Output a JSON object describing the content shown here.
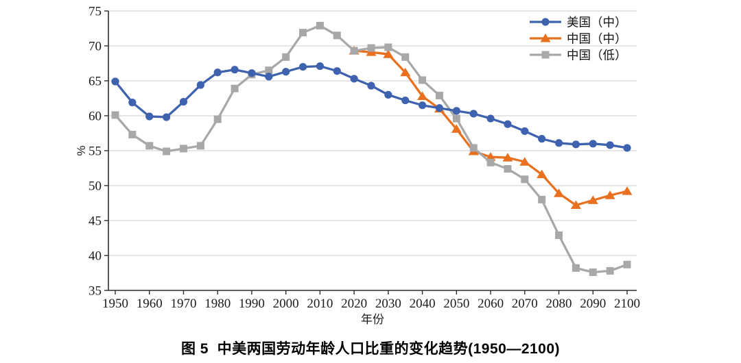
{
  "figure": {
    "caption": "图 5  中美两国劳动年龄人口比重的变化趋势(1950—2100)"
  },
  "chart_data": {
    "type": "line",
    "title": "",
    "xlabel": "年份",
    "ylabel": "%",
    "ylim": [
      35,
      75
    ],
    "yticks": [
      35,
      40,
      45,
      50,
      55,
      60,
      65,
      70,
      75
    ],
    "xticks": [
      1950,
      1960,
      1970,
      1980,
      1990,
      2000,
      2010,
      2020,
      2030,
      2040,
      2050,
      2060,
      2070,
      2080,
      2090,
      2100
    ],
    "grid": "horizontal",
    "legend_position": "top-right",
    "x": [
      1950,
      1955,
      1960,
      1965,
      1970,
      1975,
      1980,
      1985,
      1990,
      1995,
      2000,
      2005,
      2010,
      2015,
      2020,
      2025,
      2030,
      2035,
      2040,
      2045,
      2050,
      2055,
      2060,
      2065,
      2070,
      2075,
      2080,
      2085,
      2090,
      2095,
      2100
    ],
    "series": [
      {
        "key": "us-mid",
        "name": "美国（中）",
        "color": "#3E62AE",
        "marker": "circle",
        "values": [
          64.9,
          61.9,
          59.9,
          59.8,
          62.0,
          64.4,
          66.2,
          66.6,
          66.1,
          65.6,
          66.3,
          67.0,
          67.1,
          66.4,
          65.3,
          64.3,
          63.0,
          62.2,
          61.5,
          61.1,
          60.7,
          60.3,
          59.6,
          58.8,
          57.8,
          56.7,
          56.1,
          55.9,
          56.0,
          55.8,
          55.4
        ]
      },
      {
        "key": "cn-mid",
        "name": "中国（中）",
        "color": "#E8701F",
        "marker": "triangle",
        "values": [
          null,
          null,
          null,
          null,
          null,
          null,
          null,
          null,
          null,
          null,
          null,
          null,
          null,
          null,
          69.3,
          69.1,
          68.8,
          66.2,
          62.8,
          61.0,
          58.1,
          54.9,
          54.1,
          54.0,
          53.4,
          51.6,
          48.9,
          47.2,
          47.9,
          48.6,
          49.2
        ]
      },
      {
        "key": "cn-low",
        "name": "中国（低）",
        "color": "#A8A8A8",
        "marker": "square",
        "values": [
          60.1,
          57.3,
          55.7,
          54.9,
          55.3,
          55.7,
          59.5,
          63.9,
          65.9,
          66.5,
          68.4,
          71.9,
          72.9,
          71.5,
          69.3,
          69.7,
          69.8,
          68.4,
          65.1,
          62.9,
          59.6,
          55.4,
          53.3,
          52.4,
          50.9,
          48.0,
          42.9,
          38.2,
          37.6,
          37.8,
          38.7
        ]
      }
    ],
    "style": {
      "gridline_color": "#D6D6D6",
      "axis_color": "#2B2B2B",
      "text_color": "#1c1c1c"
    }
  }
}
